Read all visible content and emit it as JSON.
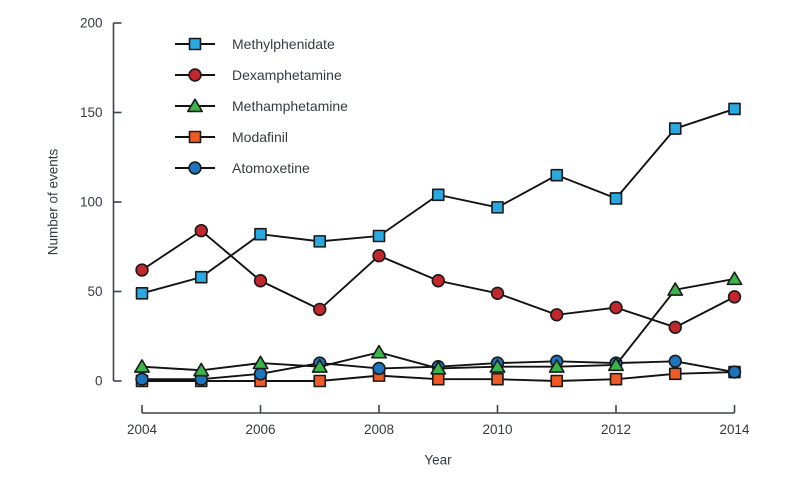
{
  "chart_data": {
    "type": "line",
    "title": "",
    "xlabel": "Year",
    "ylabel": "Number of events",
    "x": [
      2004,
      2005,
      2006,
      2007,
      2008,
      2009,
      2010,
      2011,
      2012,
      2013,
      2014
    ],
    "x_ticks": [
      2004,
      2006,
      2008,
      2010,
      2012,
      2014
    ],
    "x_tick_labels": [
      "2004",
      "2006",
      "2008",
      "2010",
      "2012",
      "2014"
    ],
    "y_ticks": [
      0,
      50,
      100,
      150,
      200
    ],
    "y_tick_labels": [
      "0",
      "50",
      "100",
      "150",
      "200"
    ],
    "ylim": [
      0,
      200
    ],
    "xlim": [
      2004,
      2014
    ],
    "grid": false,
    "legend_position": "inside-top-left",
    "series": [
      {
        "name": "Methylphenidate",
        "marker": "square",
        "color": "#29a9e1",
        "values": [
          49,
          58,
          82,
          78,
          81,
          104,
          97,
          115,
          102,
          141,
          152
        ]
      },
      {
        "name": "Dexamphetamine",
        "marker": "circle",
        "color": "#c1272d",
        "values": [
          62,
          84,
          56,
          40,
          70,
          56,
          49,
          37,
          41,
          30,
          47
        ]
      },
      {
        "name": "Methamphetamine",
        "marker": "triangle",
        "color": "#3ab54a",
        "values": [
          8,
          6,
          10,
          8,
          16,
          7,
          8,
          8,
          9,
          51,
          57
        ]
      },
      {
        "name": "Modafinil",
        "marker": "square",
        "color": "#f15a24",
        "values": [
          0,
          0,
          0,
          0,
          3,
          1,
          1,
          0,
          1,
          4,
          5
        ]
      },
      {
        "name": "Atomoxetine",
        "marker": "circle",
        "color": "#1c75bc",
        "values": [
          1,
          1,
          4,
          10,
          7,
          8,
          10,
          11,
          10,
          11,
          5
        ]
      }
    ],
    "line_color": "#121212",
    "marker_edge_color": "#1a1a1a",
    "axis_color": "#3f444b",
    "text_color": "#363b42",
    "background": "#ffffff"
  }
}
